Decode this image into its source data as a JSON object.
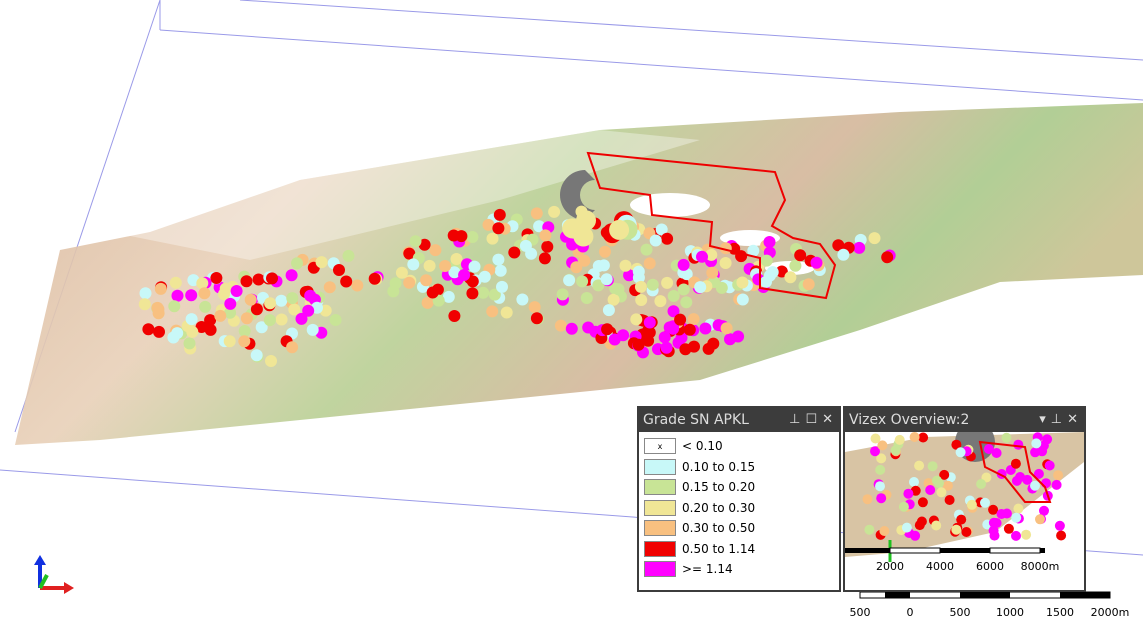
{
  "legend_panel": {
    "title": "Grade SN APKL",
    "items": [
      {
        "swatch": "x",
        "label": "< 0.10",
        "color": "#ffffff"
      },
      {
        "label": "0.10 to 0.15",
        "color": "#c8f8f8"
      },
      {
        "label": "0.15 to 0.20",
        "color": "#c8e496"
      },
      {
        "label": "0.20 to 0.30",
        "color": "#f0e696"
      },
      {
        "label": "0.30 to 0.50",
        "color": "#f8c080"
      },
      {
        "label": "0.50 to 1.14",
        "color": "#f00000"
      },
      {
        "label": ">= 1.14",
        "color": "#ff00ff"
      }
    ]
  },
  "overview_panel": {
    "title": "Vizex Overview:2",
    "scale_labels": [
      "2000",
      "4000",
      "6000",
      "8000m"
    ]
  },
  "scale_bar": {
    "labels": [
      "500",
      "0",
      "500",
      "1000",
      "1500",
      "2000m"
    ]
  }
}
